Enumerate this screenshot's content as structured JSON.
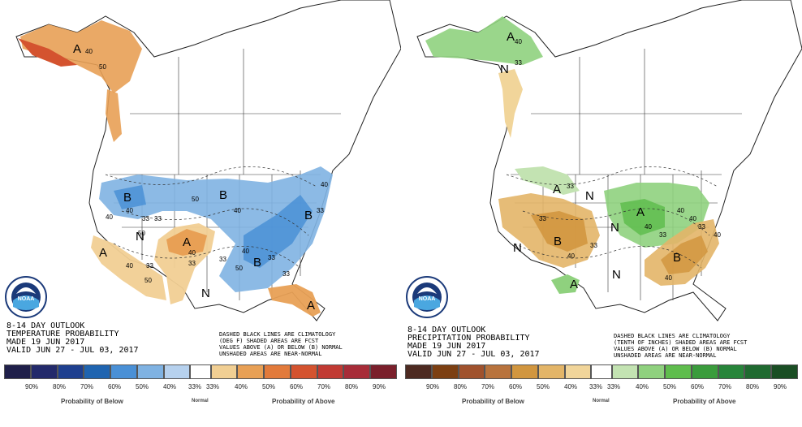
{
  "temperature": {
    "title": "8-14 DAY OUTLOOK",
    "subtitle": "TEMPERATURE PROBABILITY",
    "made": "MADE  19 JUN 2017",
    "valid": "VALID  JUN 27 - JUL 03, 2017",
    "note": [
      "DASHED BLACK LINES ARE CLIMATOLOGY",
      "(DEG F) SHADED AREAS ARE FCST",
      "VALUES ABOVE (A) OR BELOW (B) NORMAL",
      "UNSHADED AREAS ARE NEAR-NORMAL"
    ],
    "legend_labels": [
      "90%",
      "80%",
      "70%",
      "60%",
      "50%",
      "40%",
      "33%",
      "33%",
      "40%",
      "50%",
      "60%",
      "70%",
      "80%",
      "90%"
    ],
    "below_colors": [
      "#1f1f4a",
      "#232a6b",
      "#1e3f8f",
      "#1f64b0",
      "#4a90d6",
      "#7fb2e2",
      "#b6d1ee"
    ],
    "above_colors": [
      "#f1cf93",
      "#e8a055",
      "#e27a3b",
      "#d4532f",
      "#c13a33",
      "#a72c38",
      "#7a1f2b"
    ],
    "caption_below": "Probability of Below",
    "caption_normal": "Normal",
    "caption_above": "Probability of Above",
    "letters": [
      "A",
      "B",
      "B",
      "B",
      "A",
      "A",
      "A",
      "N",
      "N",
      "B"
    ],
    "numbers": [
      "40",
      "50",
      "40",
      "40",
      "50",
      "33",
      "40",
      "33",
      "33",
      "40",
      "50",
      "33",
      "50",
      "40",
      "33",
      "33",
      "40",
      "50",
      "40",
      "33",
      "33"
    ]
  },
  "precipitation": {
    "title": "8-14 DAY OUTLOOK",
    "subtitle": "PRECIPITATION PROBABILITY",
    "made": "MADE  19 JUN 2017",
    "valid": "VALID  JUN 27 - JUL 03, 2017",
    "note": [
      "DASHED BLACK LINES ARE CLIMATOLOGY",
      "(TENTH OF INCHES) SHADED AREAS ARE FCST",
      "VALUES ABOVE (A) OR BELOW (B) NORMAL",
      "UNSHADED AREAS ARE NEAR-NORMAL"
    ],
    "legend_labels": [
      "90%",
      "80%",
      "70%",
      "60%",
      "50%",
      "40%",
      "33%",
      "33%",
      "40%",
      "50%",
      "60%",
      "70%",
      "80%",
      "90%"
    ],
    "below_colors": [
      "#4d2a21",
      "#7c3f12",
      "#a0522d",
      "#b8733d",
      "#d1963f",
      "#e3b568",
      "#f1d59a"
    ],
    "above_colors": [
      "#c3e3b2",
      "#8fd17e",
      "#5fbd4d",
      "#3a9c3c",
      "#27853a",
      "#1f6a30",
      "#1a4e24"
    ],
    "caption_below": "Probability of Below",
    "caption_normal": "Normal",
    "caption_above": "Probability of Above",
    "letters": [
      "A",
      "N",
      "A",
      "N",
      "A",
      "B",
      "B",
      "A",
      "N",
      "N",
      "N"
    ],
    "numbers": [
      "40",
      "33",
      "33",
      "40",
      "40",
      "33",
      "40",
      "33",
      "40",
      "33",
      "33",
      "40",
      "40"
    ]
  },
  "logo_text": "NOAA"
}
